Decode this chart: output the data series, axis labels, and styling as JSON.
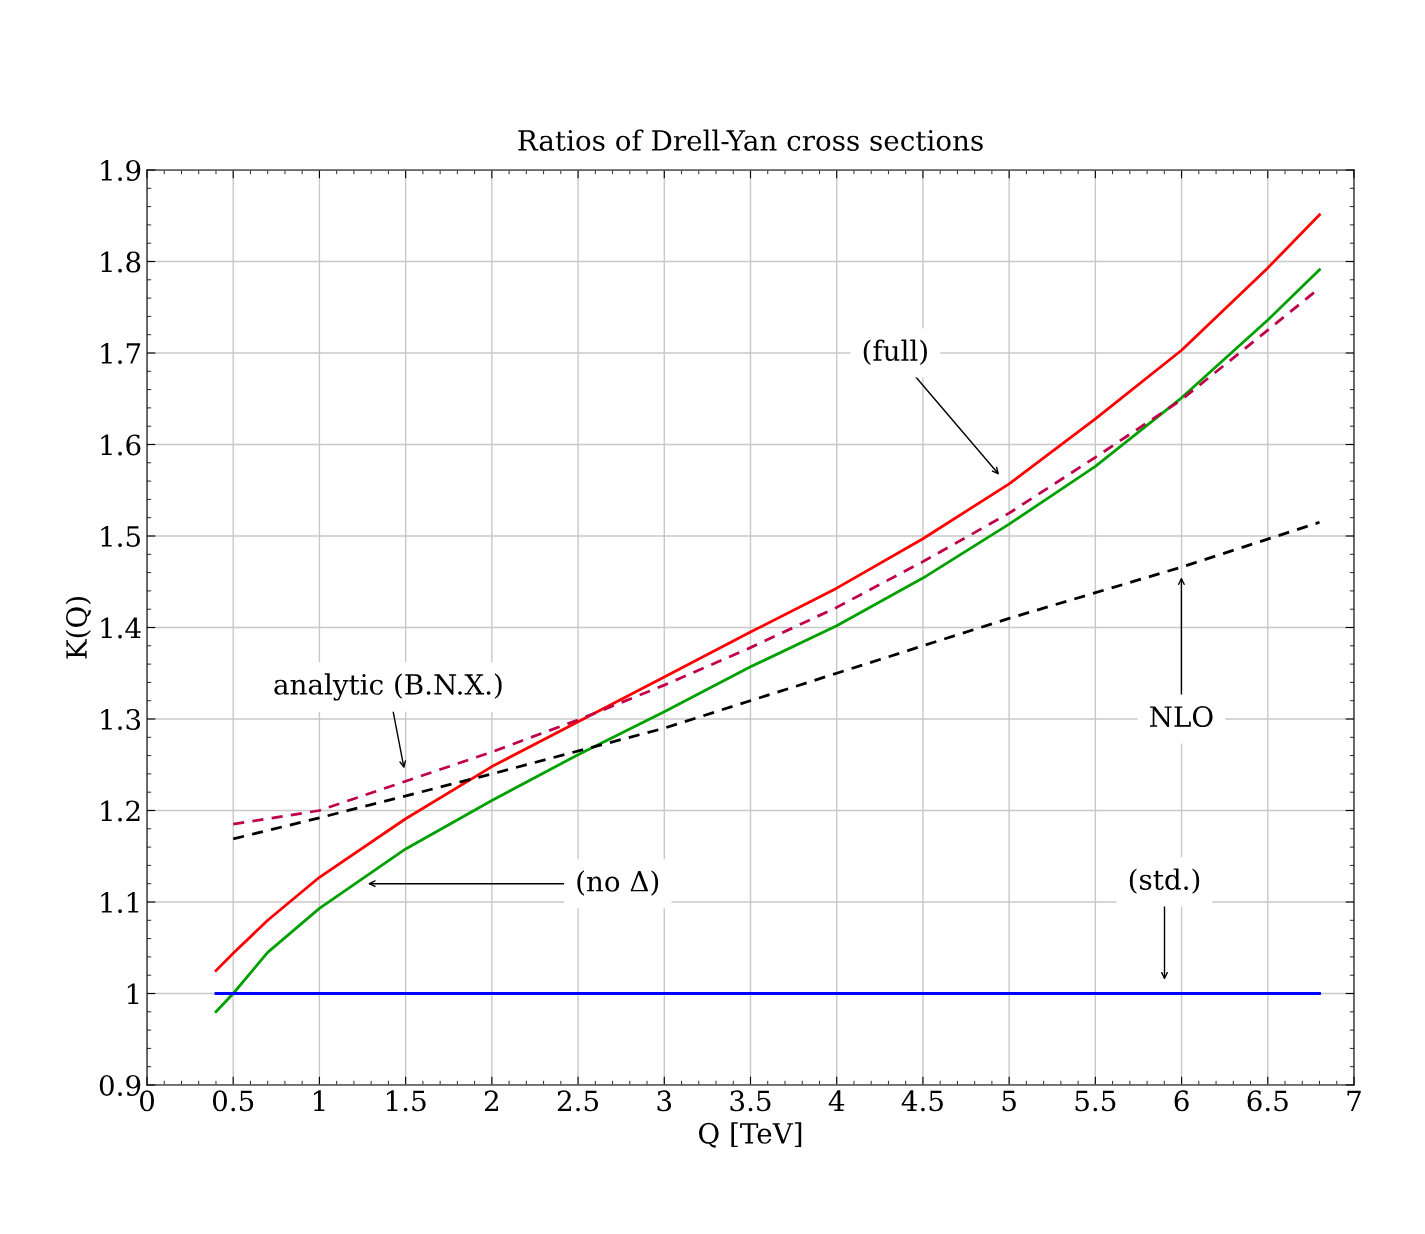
{
  "chart_data": {
    "type": "line",
    "title": "Ratios of Drell-Yan cross sections",
    "xlabel": "Q [TeV]",
    "ylabel": "K(Q)",
    "xlim": [
      0,
      7
    ],
    "ylim": [
      0.9,
      1.9
    ],
    "xticks": [
      0,
      0.5,
      1,
      1.5,
      2,
      2.5,
      3,
      3.5,
      4,
      4.5,
      5,
      5.5,
      6,
      6.5,
      7
    ],
    "yticks": [
      0.9,
      1,
      1.1,
      1.2,
      1.3,
      1.4,
      1.5,
      1.6,
      1.7,
      1.8,
      1.9
    ],
    "grid": true,
    "legend": false,
    "marker": "none",
    "series": [
      {
        "color": "#ff0000",
        "line_style": "solid",
        "x": [
          0.4,
          0.5,
          0.7,
          1.0,
          1.5,
          2.0,
          2.5,
          3.0,
          3.5,
          4.0,
          4.5,
          5.0,
          5.5,
          6.0,
          6.5,
          6.8
        ],
        "values": [
          1.025,
          1.044,
          1.08,
          1.127,
          1.191,
          1.248,
          1.297,
          1.346,
          1.395,
          1.443,
          1.497,
          1.557,
          1.628,
          1.703,
          1.793,
          1.851
        ]
      },
      {
        "color": "#00a000",
        "line_style": "solid",
        "x": [
          0.4,
          0.5,
          0.7,
          1.0,
          1.5,
          2.0,
          2.5,
          3.0,
          3.5,
          4.0,
          4.5,
          5.0,
          5.5,
          6.0,
          6.5,
          6.8
        ],
        "values": [
          0.98,
          1.0,
          1.045,
          1.093,
          1.158,
          1.211,
          1.261,
          1.308,
          1.357,
          1.402,
          1.454,
          1.513,
          1.576,
          1.651,
          1.736,
          1.791
        ]
      },
      {
        "color": "#c0004a",
        "line_style": "dashed",
        "x": [
          0.5,
          1.0,
          1.5,
          2.0,
          2.5,
          3.0,
          3.5,
          4.0,
          4.5,
          5.0,
          5.5,
          6.0,
          6.5,
          6.8
        ],
        "values": [
          1.185,
          1.2,
          1.232,
          1.264,
          1.299,
          1.337,
          1.378,
          1.422,
          1.472,
          1.525,
          1.586,
          1.649,
          1.725,
          1.771
        ]
      },
      {
        "color": "#000000",
        "line_style": "dashed",
        "x": [
          0.5,
          1.0,
          2.0,
          3.0,
          4.0,
          5.0,
          6.0,
          6.8
        ],
        "values": [
          1.169,
          1.192,
          1.24,
          1.29,
          1.35,
          1.41,
          1.466,
          1.515
        ]
      },
      {
        "color": "#0000ff",
        "line_style": "solid",
        "x": [
          0.4,
          6.8
        ],
        "values": [
          1.0,
          1.0
        ]
      }
    ],
    "annotations": [
      "(full)",
      "analytic (B.N.X.)",
      "NLO",
      "(no Δ)",
      "(std.)"
    ]
  }
}
